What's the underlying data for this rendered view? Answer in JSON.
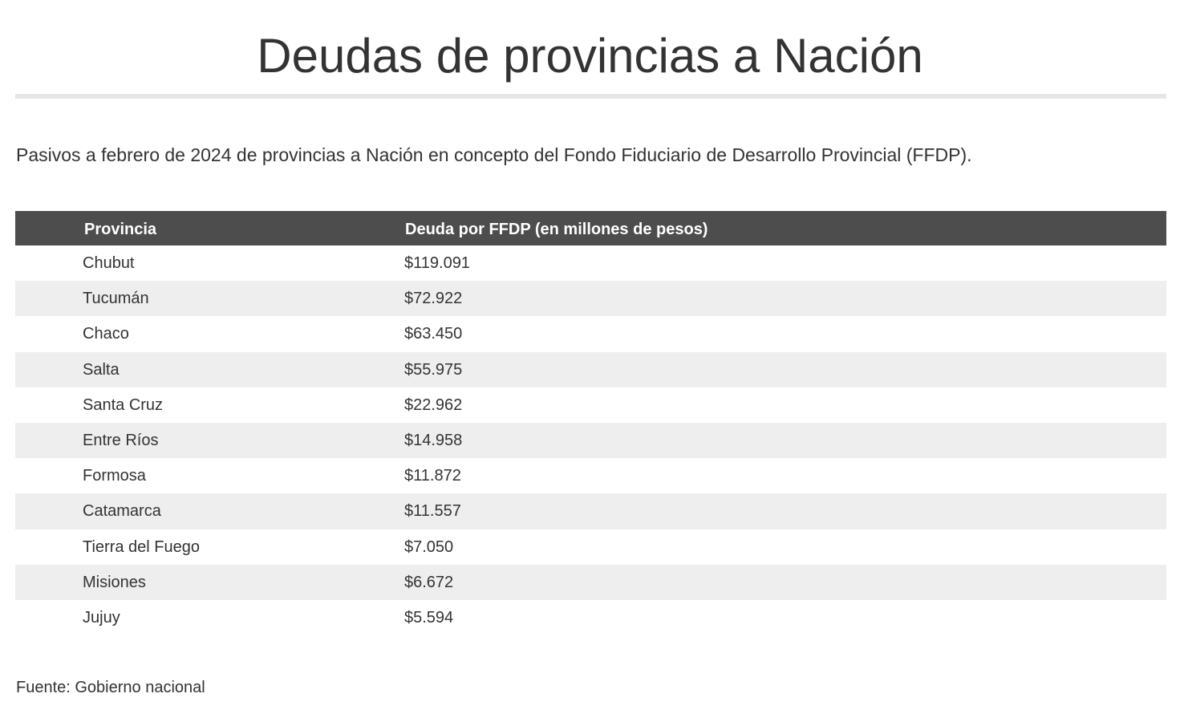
{
  "chart_data": {
    "type": "table",
    "title": "Deudas de provincias a Nación",
    "subtitle": "Pasivos a febrero de 2024 de provincias a Nación en concepto del Fondo Fiduciario de Desarrollo Provincial (FFDP).",
    "columns": [
      "Provincia",
      "Deuda por FFDP (en millones de pesos)"
    ],
    "rows": [
      {
        "provincia": "Chubut",
        "deuda": "$119.091"
      },
      {
        "provincia": "Tucumán",
        "deuda": "$72.922"
      },
      {
        "provincia": "Chaco",
        "deuda": "$63.450"
      },
      {
        "provincia": "Salta",
        "deuda": "$55.975"
      },
      {
        "provincia": "Santa Cruz",
        "deuda": "$22.962"
      },
      {
        "provincia": "Entre Ríos",
        "deuda": "$14.958"
      },
      {
        "provincia": "Formosa",
        "deuda": "$11.872"
      },
      {
        "provincia": "Catamarca",
        "deuda": "$11.557"
      },
      {
        "provincia": "Tierra del Fuego",
        "deuda": "$7.050"
      },
      {
        "provincia": "Misiones",
        "deuda": "$6.672"
      },
      {
        "provincia": "Jujuy",
        "deuda": "$5.594"
      }
    ],
    "source": "Fuente: Gobierno nacional",
    "colors": {
      "header_bg": "#4d4d4d",
      "header_text": "#ffffff",
      "stripe": "#eeeeee",
      "text": "#333333"
    }
  }
}
